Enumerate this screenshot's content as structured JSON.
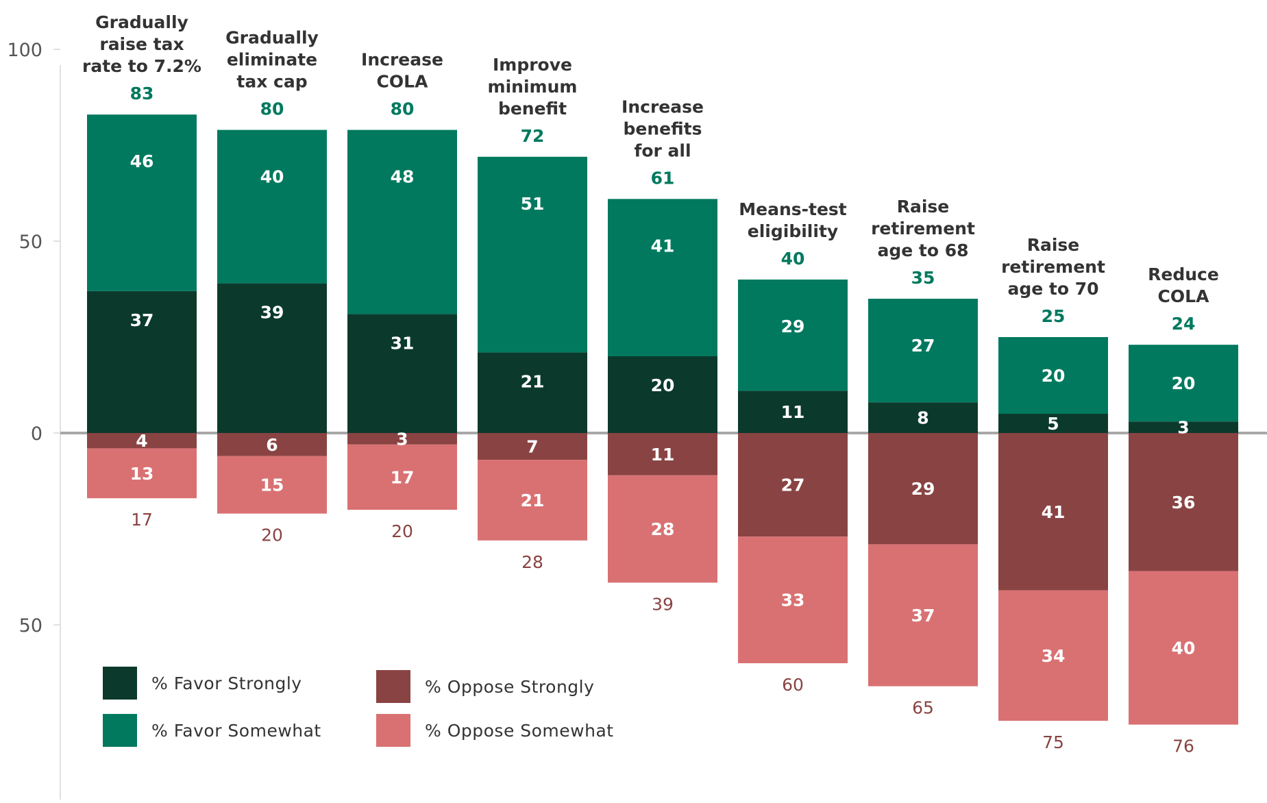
{
  "chart_data": {
    "type": "bar",
    "stacked": true,
    "diverging": true,
    "categories": [
      [
        "Gradually",
        "raise tax",
        "rate to 7.2%"
      ],
      [
        "Gradually",
        "eliminate",
        "tax cap"
      ],
      [
        "Increase",
        "COLA"
      ],
      [
        "Improve",
        "minimum",
        "benefit"
      ],
      [
        "Increase",
        "benefits",
        "for all"
      ],
      [
        "Means-test",
        "eligibility"
      ],
      [
        "Raise",
        "retirement",
        "age to 68"
      ],
      [
        "Raise",
        "retirement",
        "age to 70"
      ],
      [
        "Reduce",
        "COLA"
      ]
    ],
    "series": [
      {
        "name": "% Favor Strongly",
        "key": "favor_strongly",
        "color": "#0b3a2c",
        "values": [
          37,
          39,
          31,
          21,
          20,
          11,
          8,
          5,
          3
        ]
      },
      {
        "name": "% Favor Somewhat",
        "key": "favor_somewhat",
        "color": "#00795f",
        "values": [
          46,
          40,
          48,
          51,
          41,
          29,
          27,
          20,
          20
        ]
      },
      {
        "name": "% Oppose Strongly",
        "key": "oppose_strongly",
        "color": "#8a4343",
        "values": [
          4,
          6,
          3,
          7,
          11,
          27,
          29,
          41,
          36
        ]
      },
      {
        "name": "% Oppose Somewhat",
        "key": "oppose_somewhat",
        "color": "#d97172",
        "values": [
          13,
          15,
          17,
          21,
          28,
          33,
          37,
          34,
          40
        ]
      }
    ],
    "favor_totals": [
      83,
      80,
      80,
      72,
      61,
      40,
      35,
      25,
      24
    ],
    "oppose_totals": [
      17,
      20,
      20,
      28,
      39,
      60,
      65,
      75,
      76
    ],
    "y_ticks": [
      {
        "value": 100,
        "label": "100"
      },
      {
        "value": 50,
        "label": "50"
      },
      {
        "value": 0,
        "label": "0"
      },
      {
        "value": -50,
        "label": "50"
      }
    ],
    "ylim": [
      -100,
      100
    ],
    "title": "",
    "xlabel": "",
    "ylabel": "",
    "grid": false,
    "legend_position": "bottom-left",
    "colors": {
      "favor_total_text": "#00795f",
      "oppose_total_text": "#8a4343",
      "zero_line": "#a8a8a8",
      "axis_line": "#e0e0e0"
    }
  }
}
